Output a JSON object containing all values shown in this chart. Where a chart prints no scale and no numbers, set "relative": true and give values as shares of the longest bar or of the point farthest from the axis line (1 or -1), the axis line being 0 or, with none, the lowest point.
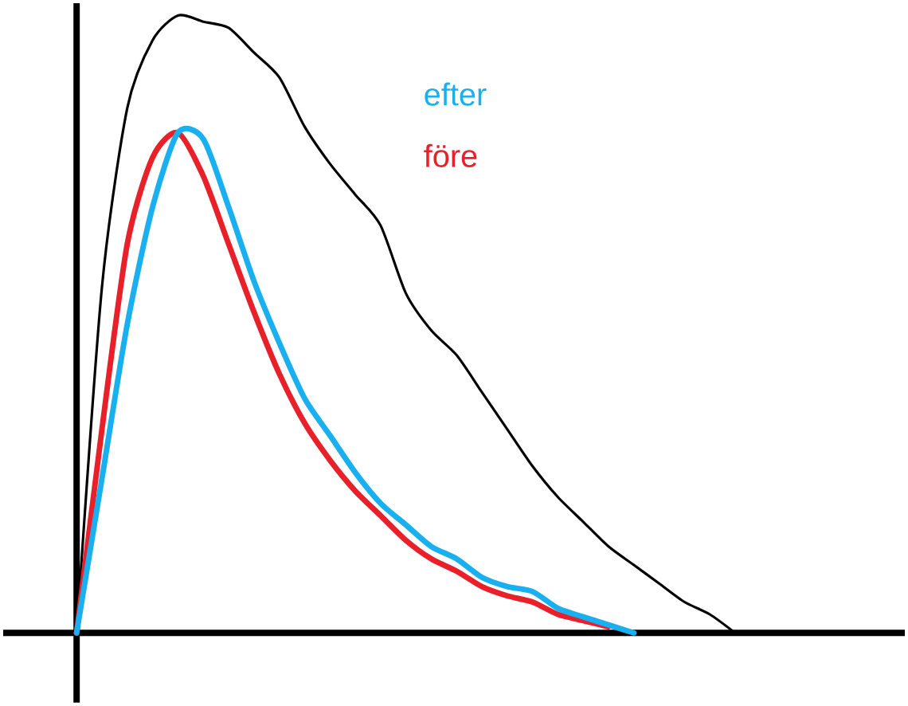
{
  "chart_data": {
    "type": "line",
    "relative": true,
    "legend": "top right",
    "marker": "none",
    "line_style": "solid",
    "categories": [
      null,
      null,
      null,
      null,
      null,
      null,
      null,
      null,
      null,
      null,
      null,
      null,
      null,
      null,
      null,
      null,
      null,
      null,
      null,
      null,
      null,
      null,
      null,
      null,
      null,
      null,
      null
    ],
    "series": [
      {
        "color": "#000000",
        "values": [
          0,
          0.56,
          0.85,
          0.96,
          1,
          0.99,
          0.98,
          0.94,
          0.9,
          0.82,
          0.76,
          0.71,
          0.66,
          0.55,
          0.49,
          0.45,
          0.39,
          0.33,
          0.27,
          0.22,
          0.18,
          0.14,
          0.11,
          0.08,
          0.05,
          0.03,
          0
        ]
      },
      {
        "name": "före",
        "color": "#e8202a",
        "values": [
          0,
          0.33,
          0.63,
          0.77,
          0.81,
          0.74,
          0.63,
          0.52,
          0.42,
          0.34,
          0.28,
          0.23,
          0.19,
          0.15,
          0.12,
          0.1,
          0.075,
          0.06,
          0.05,
          0.03,
          0.02,
          0.01,
          null,
          null,
          null,
          null,
          null
        ]
      },
      {
        "name": "efter",
        "color": "#1ab0ef",
        "values": [
          0,
          0.25,
          0.5,
          0.69,
          0.81,
          0.8,
          0.69,
          0.57,
          0.47,
          0.38,
          0.32,
          0.26,
          0.21,
          0.175,
          0.14,
          0.12,
          0.09,
          0.075,
          0.067,
          0.04,
          0.026,
          0.013,
          0,
          null,
          null,
          null,
          null
        ]
      }
    ]
  }
}
